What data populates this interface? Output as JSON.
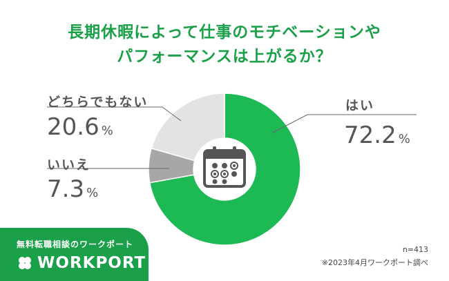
{
  "title_lines": [
    "長期休暇によって仕事のモチベーションや",
    "パフォーマンスは上がるか？"
  ],
  "chart_data": {
    "type": "pie",
    "style": "donut",
    "slices": [
      {
        "label": "はい",
        "value": 72.2,
        "color": "#1db954"
      },
      {
        "label": "いいえ",
        "value": 7.3,
        "color": "#a7a7a7"
      },
      {
        "label": "どちらでもない",
        "value": 20.6,
        "color": "#e3e3e3"
      }
    ],
    "unit": "%",
    "center_icon": "calendar-icon"
  },
  "footer": {
    "tagline": "無料転職相談のワークポート",
    "logo": "WORKPORT",
    "logo_icon": "clover-icon",
    "sample": "n=413",
    "source": "※2023年4月ワークポート調べ"
  },
  "colors": {
    "brand_green": "#1aa048"
  }
}
